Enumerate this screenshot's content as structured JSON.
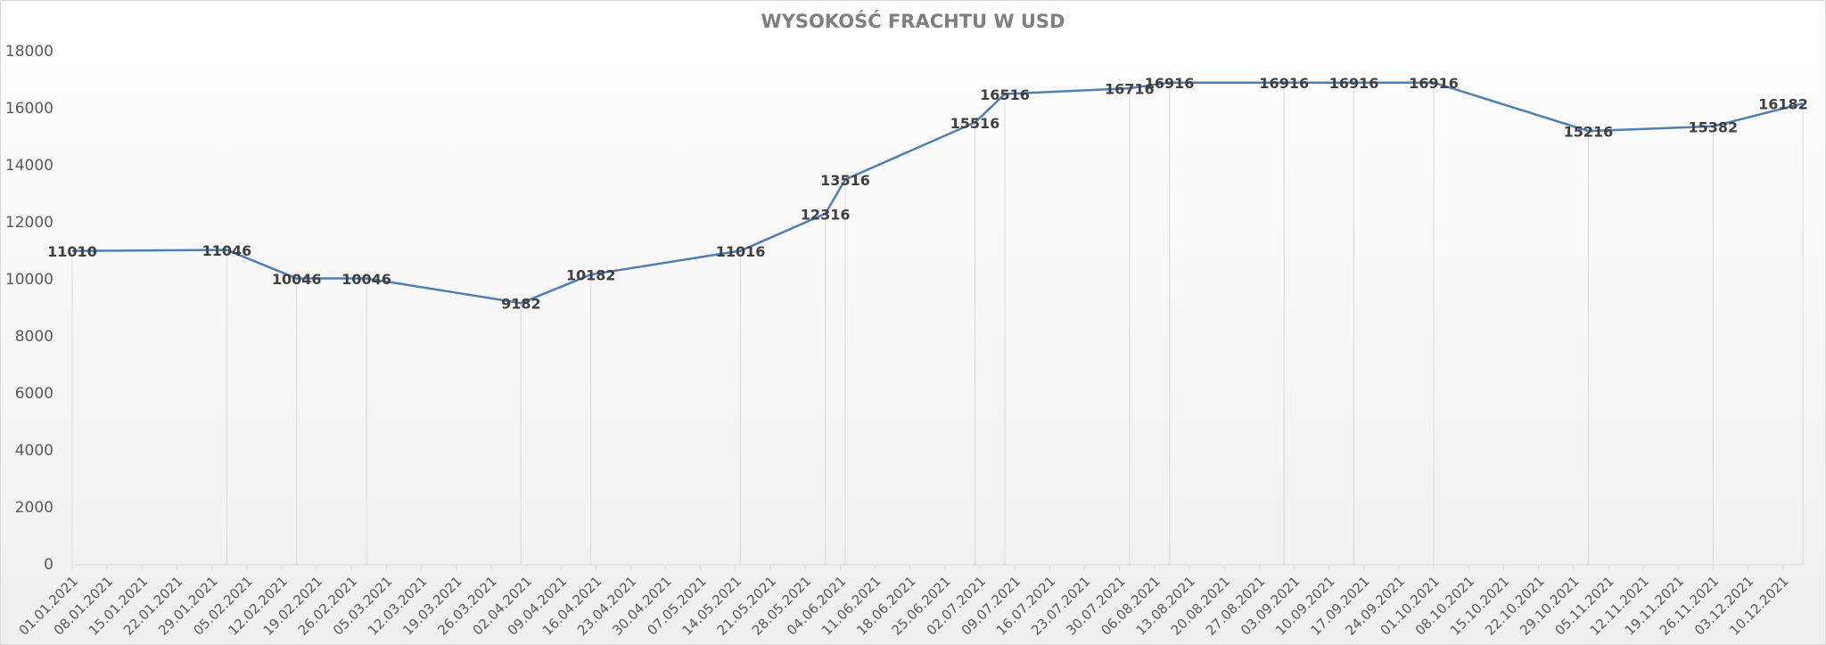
{
  "chart_data": {
    "type": "line",
    "title": "WYSOKOŚĆ FRACHTU W USD",
    "x": [
      "01.01.2021",
      "01.02.2021",
      "15.02.2021",
      "01.03.2021",
      "01.04.2021",
      "15.04.2021",
      "15.05.2021",
      "01.06.2021",
      "05.06.2021",
      "01.07.2021",
      "07.07.2021",
      "01.08.2021",
      "09.08.2021",
      "01.09.2021",
      "15.09.2021",
      "01.10.2021",
      "01.11.2021",
      "26.11.2021",
      "14.12.2021"
    ],
    "series": [
      {
        "color": "#4f7fb3",
        "values": [
          11010,
          11046,
          10046,
          10046,
          9182,
          10182,
          11016,
          12316,
          13516,
          15516,
          16516,
          16716,
          16916,
          16916,
          16916,
          16916,
          15216,
          15382,
          16182
        ]
      }
    ],
    "xlim": [
      "01.01.2021",
      "14.12.2021"
    ],
    "xticks": [
      "01.01.2021",
      "08.01.2021",
      "15.01.2021",
      "22.01.2021",
      "29.01.2021",
      "05.02.2021",
      "12.02.2021",
      "19.02.2021",
      "26.02.2021",
      "05.03.2021",
      "12.03.2021",
      "19.03.2021",
      "26.03.2021",
      "02.04.2021",
      "09.04.2021",
      "16.04.2021",
      "23.04.2021",
      "30.04.2021",
      "07.05.2021",
      "14.05.2021",
      "21.05.2021",
      "28.05.2021",
      "04.06.2021",
      "11.06.2021",
      "18.06.2021",
      "25.06.2021",
      "02.07.2021",
      "09.07.2021",
      "16.07.2021",
      "23.07.2021",
      "30.07.2021",
      "06.08.2021",
      "13.08.2021",
      "20.08.2021",
      "27.08.2021",
      "03.09.2021",
      "10.09.2021",
      "17.09.2021",
      "24.09.2021",
      "01.10.2021",
      "08.10.2021",
      "15.10.2021",
      "22.10.2021",
      "29.10.2021",
      "05.11.2021",
      "12.11.2021",
      "19.11.2021",
      "26.11.2021",
      "03.12.2021",
      "10.12.2021"
    ],
    "ylim": [
      0,
      18000
    ],
    "yticks": [
      0,
      2000,
      4000,
      6000,
      8000,
      10000,
      12000,
      14000,
      16000,
      18000
    ]
  }
}
